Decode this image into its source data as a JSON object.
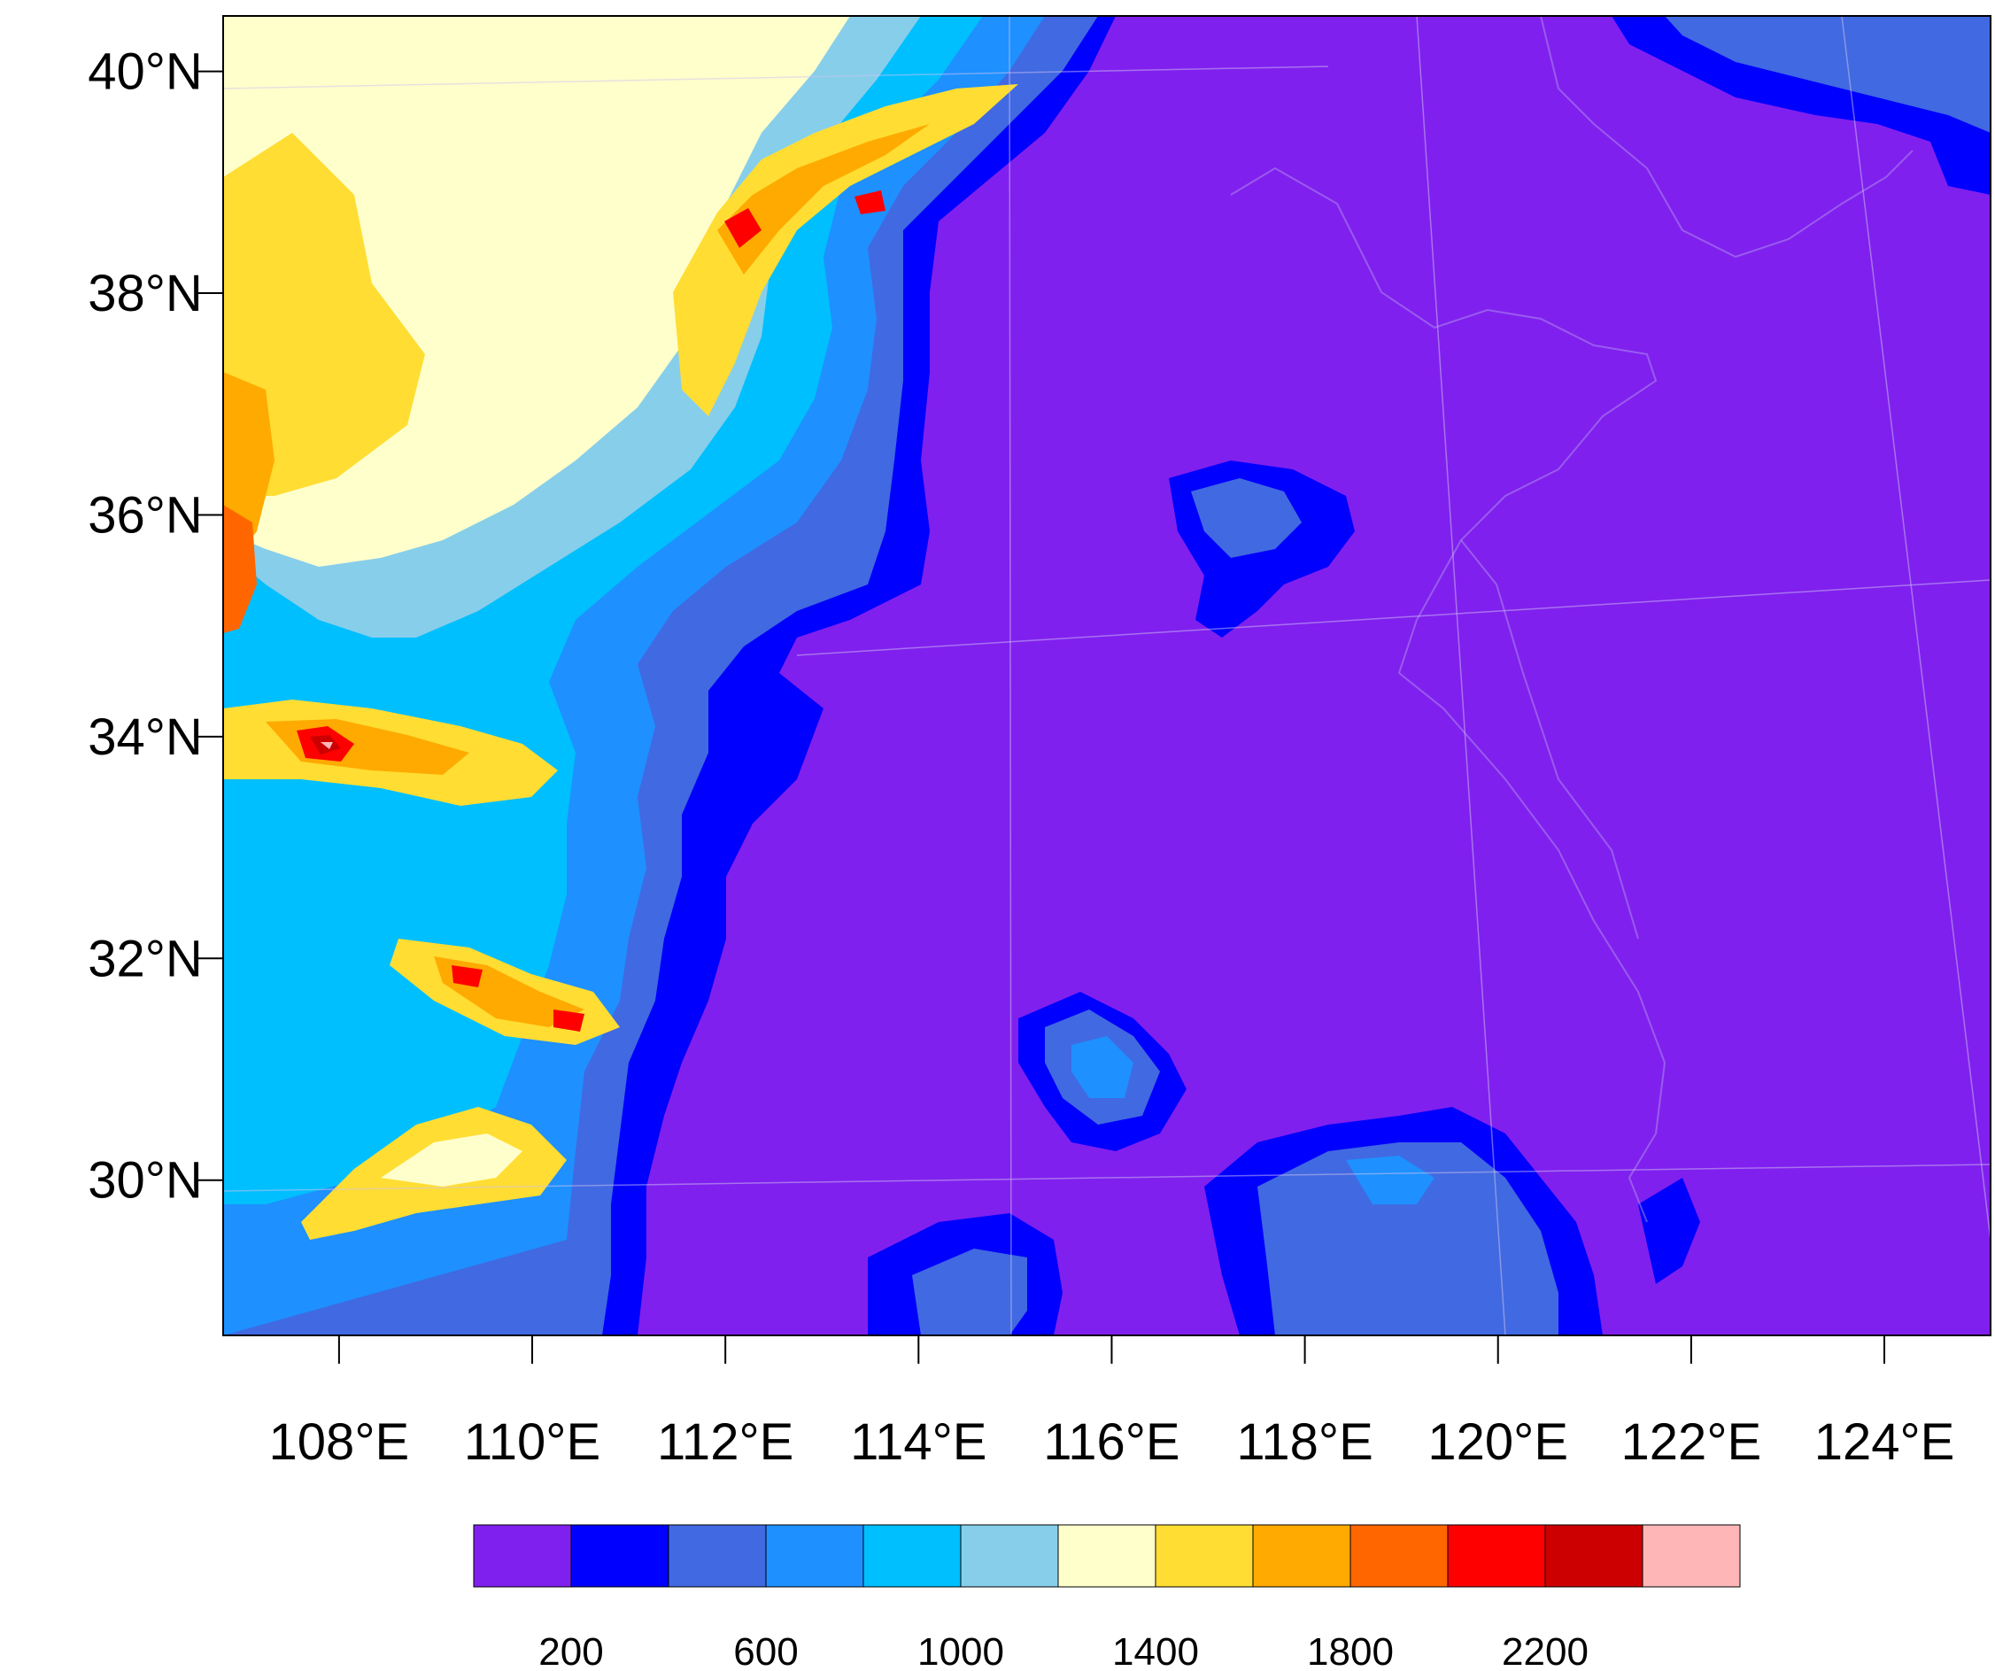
{
  "map": {
    "lon_range": [
      106.8,
      125.1
    ],
    "lat_range": [
      28.6,
      40.5
    ],
    "lat_ticks": [
      {
        "value": 40,
        "label": "40°N"
      },
      {
        "value": 38,
        "label": "38°N"
      },
      {
        "value": 36,
        "label": "36°N"
      },
      {
        "value": 34,
        "label": "34°N"
      },
      {
        "value": 32,
        "label": "32°N"
      },
      {
        "value": 30,
        "label": "30°N"
      }
    ],
    "lon_ticks": [
      {
        "value": 108,
        "label": "108°E"
      },
      {
        "value": 110,
        "label": "110°E"
      },
      {
        "value": 112,
        "label": "112°E"
      },
      {
        "value": 114,
        "label": "114°E"
      },
      {
        "value": 116,
        "label": "116°E"
      },
      {
        "value": 118,
        "label": "118°E"
      },
      {
        "value": 120,
        "label": "120°E"
      },
      {
        "value": 122,
        "label": "122°E"
      },
      {
        "value": 124,
        "label": "124°E"
      }
    ],
    "background_color": "#8020EE"
  },
  "colorbar": {
    "colors": [
      "#8020EE",
      "#0000FF",
      "#4169E1",
      "#1E90FF",
      "#00BFFF",
      "#87CEEB",
      "#FFFFCC",
      "#FFDD33",
      "#FFAA00",
      "#FF6600",
      "#FF0000",
      "#CC0000",
      "#FFB6B6"
    ],
    "labels": [
      {
        "after_box": 1,
        "text": "200"
      },
      {
        "after_box": 3,
        "text": "600"
      },
      {
        "after_box": 5,
        "text": "1000"
      },
      {
        "after_box": 7,
        "text": "1400"
      },
      {
        "after_box": 9,
        "text": "1800"
      },
      {
        "after_box": 11,
        "text": "2200"
      }
    ]
  }
}
